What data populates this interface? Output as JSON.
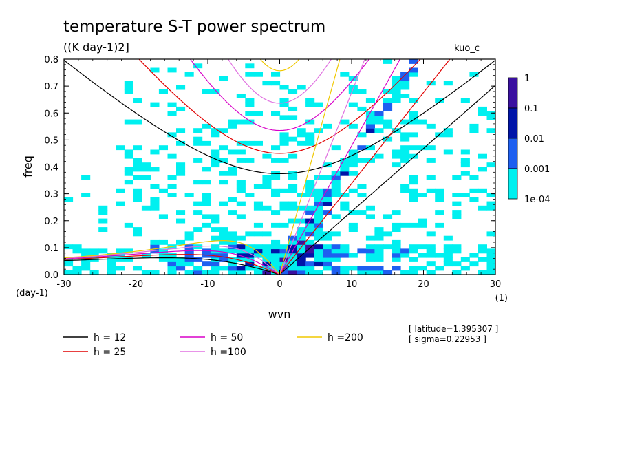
{
  "chart_data": {
    "type": "heatmap",
    "title": "temperature S-T power spectrum",
    "units_label": "((K day-1)2]",
    "model_label": "kuo_c",
    "xlabel": "wvn",
    "ylabel": "freq",
    "x_unit_label": "(1)",
    "y_unit_label": "(day-1)",
    "xlim": [
      -30,
      30
    ],
    "ylim": [
      0,
      0.8
    ],
    "x_ticks": [
      -30,
      -20,
      -10,
      0,
      10,
      20,
      30
    ],
    "x_tick_labels": [
      "-30",
      "-20",
      "-10",
      "0",
      "10",
      "20",
      "30"
    ],
    "y_ticks": [
      0,
      0.1,
      0.2,
      0.3,
      0.4,
      0.5,
      0.6,
      0.7,
      0.8
    ],
    "y_tick_labels": [
      "0.0",
      "0.1",
      "0.2",
      "0.3",
      "0.4",
      "0.5",
      "0.6",
      "0.7",
      "0.8"
    ],
    "colorbar": {
      "levels": [
        "1",
        "0.1",
        "0.01",
        "0.001",
        "1e-04"
      ],
      "colors": [
        "#3a10a0",
        "#0014a8",
        "#1e5ff0",
        "#00f0f0"
      ]
    },
    "colors": {
      "h12": "#000000",
      "h25": "#e00000",
      "h50": "#d800c8",
      "h100": "#e070e0",
      "h200": "#f0c800"
    },
    "legend": [
      {
        "key": "h12",
        "label": "h = 12"
      },
      {
        "key": "h25",
        "label": "h = 25"
      },
      {
        "key": "h50",
        "label": "h = 50"
      },
      {
        "key": "h100",
        "label": "h =100"
      },
      {
        "key": "h200",
        "label": "h =200"
      }
    ],
    "equivalent_depths": [
      12,
      25,
      50,
      100,
      200
    ],
    "info": [
      "[ latitude=1.395307 ]",
      "[ sigma=0.22953 ]"
    ]
  }
}
